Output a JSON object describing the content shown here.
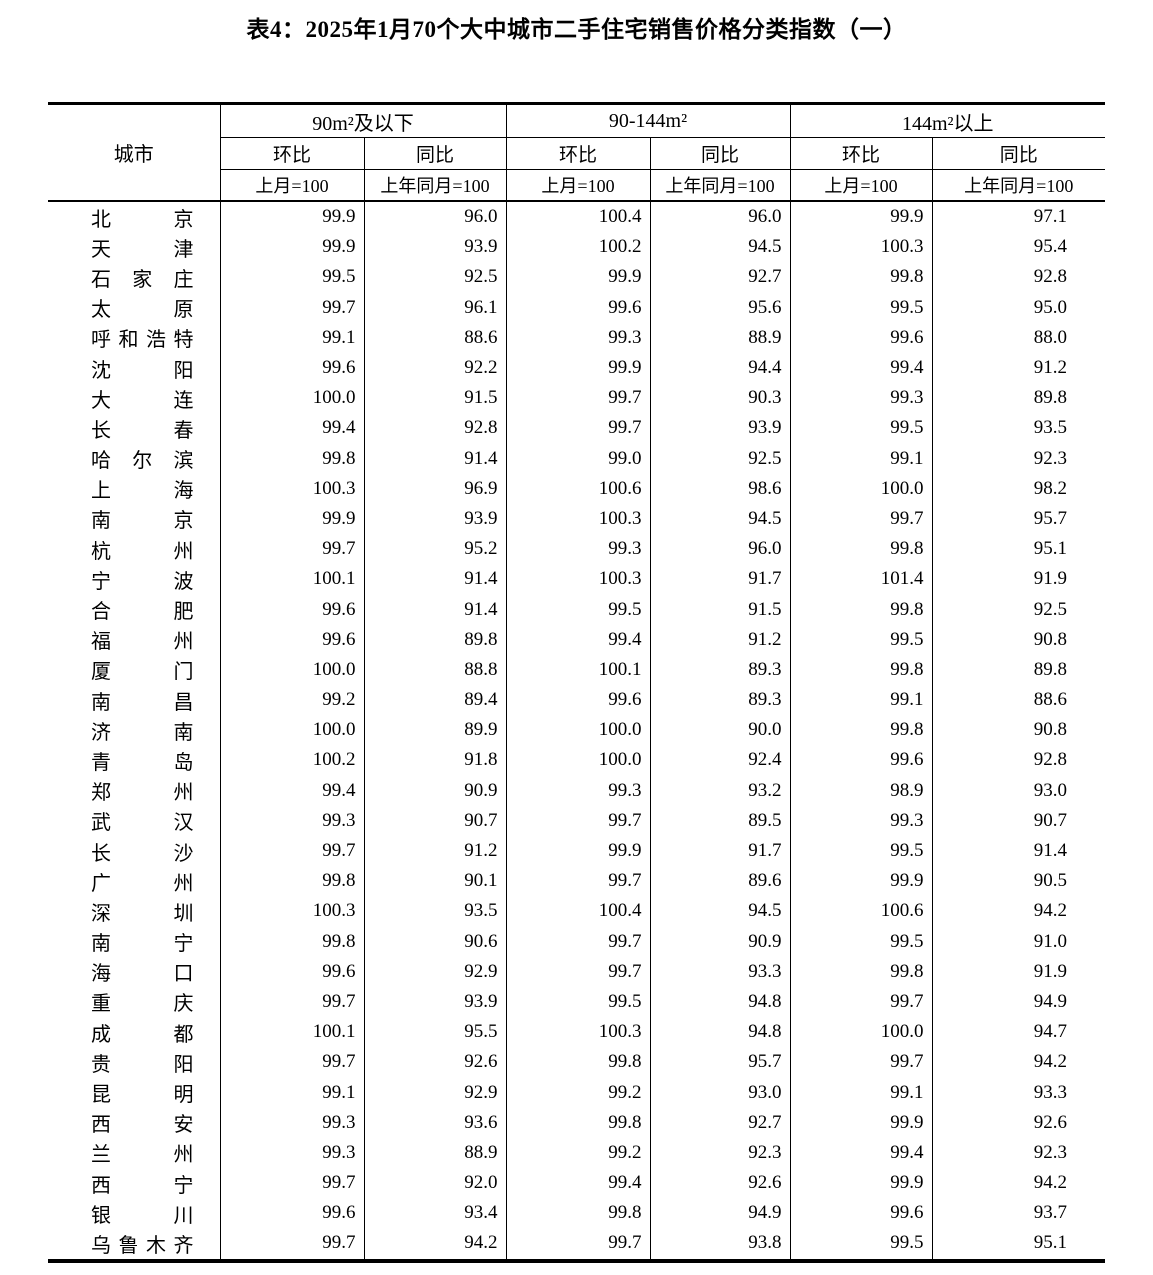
{
  "title": "表4：2025年1月70个大中城市二手住宅销售价格分类指数（一）",
  "table": {
    "city_header": "城市",
    "groups": [
      {
        "label": "90m²及以下"
      },
      {
        "label": "90-144m²"
      },
      {
        "label": "144m²以上"
      }
    ],
    "sub_headers": {
      "mom": "环比",
      "yoy": "同比"
    },
    "base_labels": {
      "mom": "上月=100",
      "yoy": "上年同月=100"
    },
    "rows": [
      {
        "city": "北京",
        "values": [
          "99.9",
          "96.0",
          "100.4",
          "96.0",
          "99.9",
          "97.1"
        ]
      },
      {
        "city": "天津",
        "values": [
          "99.9",
          "93.9",
          "100.2",
          "94.5",
          "100.3",
          "95.4"
        ]
      },
      {
        "city": "石家庄",
        "values": [
          "99.5",
          "92.5",
          "99.9",
          "92.7",
          "99.8",
          "92.8"
        ]
      },
      {
        "city": "太原",
        "values": [
          "99.7",
          "96.1",
          "99.6",
          "95.6",
          "99.5",
          "95.0"
        ]
      },
      {
        "city": "呼和浩特",
        "values": [
          "99.1",
          "88.6",
          "99.3",
          "88.9",
          "99.6",
          "88.0"
        ]
      },
      {
        "city": "沈阳",
        "values": [
          "99.6",
          "92.2",
          "99.9",
          "94.4",
          "99.4",
          "91.2"
        ]
      },
      {
        "city": "大连",
        "values": [
          "100.0",
          "91.5",
          "99.7",
          "90.3",
          "99.3",
          "89.8"
        ]
      },
      {
        "city": "长春",
        "values": [
          "99.4",
          "92.8",
          "99.7",
          "93.9",
          "99.5",
          "93.5"
        ]
      },
      {
        "city": "哈尔滨",
        "values": [
          "99.8",
          "91.4",
          "99.0",
          "92.5",
          "99.1",
          "92.3"
        ]
      },
      {
        "city": "上海",
        "values": [
          "100.3",
          "96.9",
          "100.6",
          "98.6",
          "100.0",
          "98.2"
        ]
      },
      {
        "city": "南京",
        "values": [
          "99.9",
          "93.9",
          "100.3",
          "94.5",
          "99.7",
          "95.7"
        ]
      },
      {
        "city": "杭州",
        "values": [
          "99.7",
          "95.2",
          "99.3",
          "96.0",
          "99.8",
          "95.1"
        ]
      },
      {
        "city": "宁波",
        "values": [
          "100.1",
          "91.4",
          "100.3",
          "91.7",
          "101.4",
          "91.9"
        ]
      },
      {
        "city": "合肥",
        "values": [
          "99.6",
          "91.4",
          "99.5",
          "91.5",
          "99.8",
          "92.5"
        ]
      },
      {
        "city": "福州",
        "values": [
          "99.6",
          "89.8",
          "99.4",
          "91.2",
          "99.5",
          "90.8"
        ]
      },
      {
        "city": "厦门",
        "values": [
          "100.0",
          "88.8",
          "100.1",
          "89.3",
          "99.8",
          "89.8"
        ]
      },
      {
        "city": "南昌",
        "values": [
          "99.2",
          "89.4",
          "99.6",
          "89.3",
          "99.1",
          "88.6"
        ]
      },
      {
        "city": "济南",
        "values": [
          "100.0",
          "89.9",
          "100.0",
          "90.0",
          "99.8",
          "90.8"
        ]
      },
      {
        "city": "青岛",
        "values": [
          "100.2",
          "91.8",
          "100.0",
          "92.4",
          "99.6",
          "92.8"
        ]
      },
      {
        "city": "郑州",
        "values": [
          "99.4",
          "90.9",
          "99.3",
          "93.2",
          "98.9",
          "93.0"
        ]
      },
      {
        "city": "武汉",
        "values": [
          "99.3",
          "90.7",
          "99.7",
          "89.5",
          "99.3",
          "90.7"
        ]
      },
      {
        "city": "长沙",
        "values": [
          "99.7",
          "91.2",
          "99.9",
          "91.7",
          "99.5",
          "91.4"
        ]
      },
      {
        "city": "广州",
        "values": [
          "99.8",
          "90.1",
          "99.7",
          "89.6",
          "99.9",
          "90.5"
        ]
      },
      {
        "city": "深圳",
        "values": [
          "100.3",
          "93.5",
          "100.4",
          "94.5",
          "100.6",
          "94.2"
        ]
      },
      {
        "city": "南宁",
        "values": [
          "99.8",
          "90.6",
          "99.7",
          "90.9",
          "99.5",
          "91.0"
        ]
      },
      {
        "city": "海口",
        "values": [
          "99.6",
          "92.9",
          "99.7",
          "93.3",
          "99.8",
          "91.9"
        ]
      },
      {
        "city": "重庆",
        "values": [
          "99.7",
          "93.9",
          "99.5",
          "94.8",
          "99.7",
          "94.9"
        ]
      },
      {
        "city": "成都",
        "values": [
          "100.1",
          "95.5",
          "100.3",
          "94.8",
          "100.0",
          "94.7"
        ]
      },
      {
        "city": "贵阳",
        "values": [
          "99.7",
          "92.6",
          "99.8",
          "95.7",
          "99.7",
          "94.2"
        ]
      },
      {
        "city": "昆明",
        "values": [
          "99.1",
          "92.9",
          "99.2",
          "93.0",
          "99.1",
          "93.3"
        ]
      },
      {
        "city": "西安",
        "values": [
          "99.3",
          "93.6",
          "99.8",
          "92.7",
          "99.9",
          "92.6"
        ]
      },
      {
        "city": "兰州",
        "values": [
          "99.3",
          "88.9",
          "99.2",
          "92.3",
          "99.4",
          "92.3"
        ]
      },
      {
        "city": "西宁",
        "values": [
          "99.7",
          "92.0",
          "99.4",
          "92.6",
          "99.9",
          "94.2"
        ]
      },
      {
        "city": "银川",
        "values": [
          "99.6",
          "93.4",
          "99.8",
          "94.9",
          "99.6",
          "93.7"
        ]
      },
      {
        "city": "乌鲁木齐",
        "values": [
          "99.7",
          "94.2",
          "99.7",
          "93.8",
          "99.5",
          "95.1"
        ]
      }
    ]
  }
}
